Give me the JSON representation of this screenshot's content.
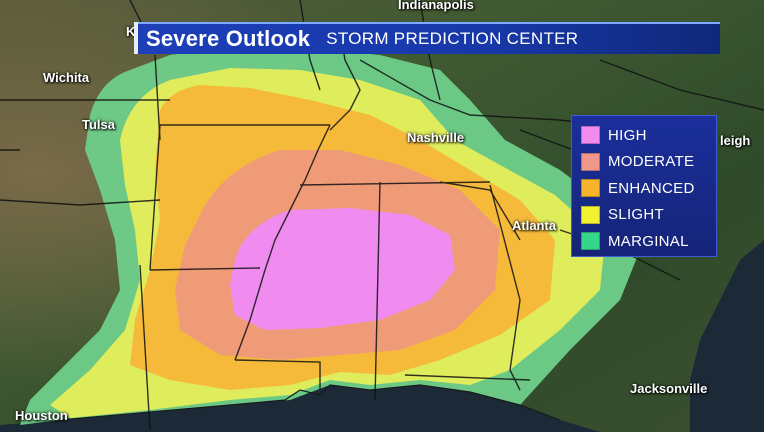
{
  "title": {
    "main": "Severe Outlook",
    "sub": "STORM PREDICTION CENTER"
  },
  "cities": [
    {
      "id": "indianapolis",
      "label": "Indianapolis"
    },
    {
      "id": "wichita",
      "label": "Wichita"
    },
    {
      "id": "tulsa",
      "label": "Tulsa"
    },
    {
      "id": "nashville",
      "label": "Nashville"
    },
    {
      "id": "raleigh",
      "label": "leigh"
    },
    {
      "id": "atlanta",
      "label": "Atlanta"
    },
    {
      "id": "jacksonville",
      "label": "Jacksonville"
    },
    {
      "id": "houston",
      "label": "Houston"
    },
    {
      "id": "edge-k",
      "label": "K"
    }
  ],
  "legend": [
    {
      "id": "high",
      "label": "HIGH",
      "color": "#f08cf0"
    },
    {
      "id": "moderate",
      "label": "MODERATE",
      "color": "#f0968a"
    },
    {
      "id": "enhanced",
      "label": "ENHANCED",
      "color": "#f7b42a"
    },
    {
      "id": "slight",
      "label": "SLIGHT",
      "color": "#f2f232"
    },
    {
      "id": "marginal",
      "label": "MARGINAL",
      "color": "#36d68a"
    }
  ],
  "colors": {
    "marginal_fill": "#6fcf8a",
    "slight_fill": "#e6ee5a",
    "enhanced_fill": "#f7b83a",
    "moderate_fill": "#f09a7a",
    "high_fill": "#f08cf0",
    "title_bar": "#1d3fb8",
    "legend_bg": "#1b2f9c"
  }
}
